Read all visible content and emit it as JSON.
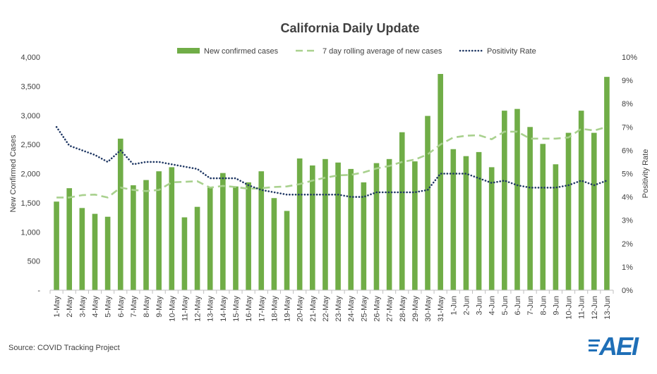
{
  "chart_data": {
    "type": "bar+line",
    "title": "California  Daily Update",
    "ylabel": "New Confirmed Cases",
    "y2label": "Positivity Rate",
    "ylim": [
      0,
      4000
    ],
    "y2lim": [
      0,
      10
    ],
    "yticks": [
      0,
      500,
      1000,
      1500,
      2000,
      2500,
      3000,
      3500,
      4000
    ],
    "ytick_labels": [
      "-",
      "500",
      "1,000",
      "1,500",
      "2,000",
      "2,500",
      "3,000",
      "3,500",
      "4,000"
    ],
    "y2ticks": [
      0,
      1,
      2,
      3,
      4,
      5,
      6,
      7,
      8,
      9,
      10
    ],
    "y2tick_labels": [
      "0%",
      "1%",
      "2%",
      "3%",
      "4%",
      "5%",
      "6%",
      "7%",
      "8%",
      "9%",
      "10%"
    ],
    "categories": [
      "1-May",
      "2-May",
      "3-May",
      "4-May",
      "5-May",
      "6-May",
      "7-May",
      "8-May",
      "9-May",
      "10-May",
      "11-May",
      "12-May",
      "13-May",
      "14-May",
      "15-May",
      "16-May",
      "17-May",
      "18-May",
      "19-May",
      "20-May",
      "21-May",
      "22-May",
      "23-May",
      "24-May",
      "25-May",
      "26-May",
      "27-May",
      "28-May",
      "29-May",
      "30-May",
      "31-May",
      "1-Jun",
      "2-Jun",
      "3-Jun",
      "4-Jun",
      "5-Jun",
      "6-Jun",
      "7-Jun",
      "8-Jun",
      "9-Jun",
      "10-Jun",
      "11-Jun",
      "12-Jun",
      "13-Jun"
    ],
    "series": [
      {
        "name": "New confirmed cases",
        "type": "bar",
        "color": "#70ad47",
        "values": [
          1520,
          1750,
          1410,
          1310,
          1260,
          2600,
          1800,
          1890,
          2040,
          2110,
          1250,
          1430,
          1760,
          2010,
          1780,
          1850,
          2040,
          1580,
          1360,
          2260,
          2140,
          2250,
          2190,
          2080,
          1850,
          2180,
          2250,
          2710,
          2210,
          2990,
          3710,
          2420,
          2300,
          2370,
          2110,
          3080,
          3110,
          2800,
          2510,
          2160,
          2700,
          3080,
          2700,
          3660
        ]
      },
      {
        "name": "7 day rolling average of new cases",
        "type": "line",
        "style": "dashed",
        "color": "#a9d18e",
        "values": [
          1590,
          1590,
          1630,
          1640,
          1590,
          1760,
          1720,
          1700,
          1720,
          1850,
          1860,
          1870,
          1760,
          1790,
          1770,
          1740,
          1750,
          1770,
          1780,
          1820,
          1880,
          1930,
          1970,
          1980,
          2020,
          2090,
          2130,
          2200,
          2240,
          2330,
          2500,
          2620,
          2650,
          2660,
          2590,
          2720,
          2720,
          2600,
          2600,
          2600,
          2620,
          2770,
          2740,
          2800
        ]
      },
      {
        "name": "Positivity Rate",
        "type": "line",
        "style": "dotted",
        "axis": "secondary",
        "color": "#203864",
        "values": [
          7.0,
          6.2,
          6.0,
          5.8,
          5.5,
          6.0,
          5.4,
          5.5,
          5.5,
          5.4,
          5.3,
          5.2,
          4.8,
          4.8,
          4.8,
          4.5,
          4.3,
          4.2,
          4.1,
          4.1,
          4.1,
          4.1,
          4.1,
          4.0,
          4.0,
          4.2,
          4.2,
          4.2,
          4.2,
          4.3,
          5.0,
          5.0,
          5.0,
          4.8,
          4.6,
          4.7,
          4.5,
          4.4,
          4.4,
          4.4,
          4.5,
          4.7,
          4.5,
          4.7
        ]
      }
    ]
  },
  "source": "Source: COVID Tracking Project",
  "logo": {
    "text": "AEI",
    "color": "#1f6fb7"
  }
}
